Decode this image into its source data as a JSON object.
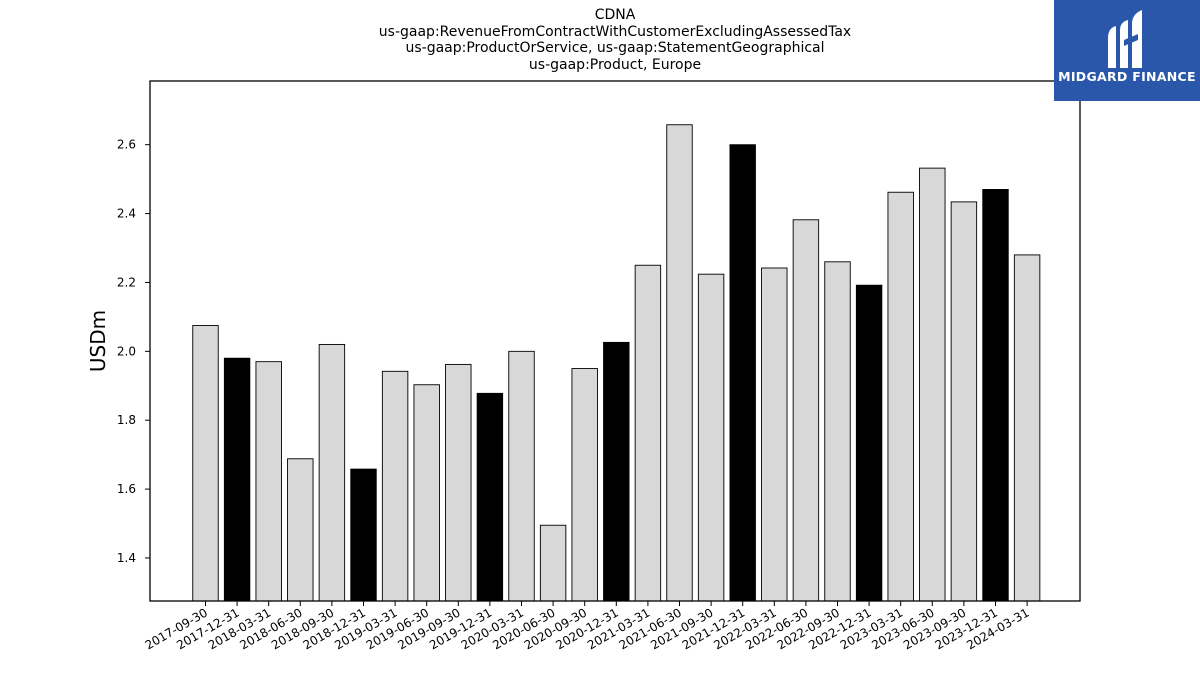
{
  "chart_data": {
    "type": "bar",
    "title_lines": [
      "CDNA",
      "us-gaap:RevenueFromContractWithCustomerExcludingAssessedTax",
      "us-gaap:ProductOrService, us-gaap:StatementGeographical",
      "us-gaap:Product, Europe"
    ],
    "ylabel": "USDm",
    "xlabel": "",
    "ylim": [
      1.275,
      2.785
    ],
    "yticks": [
      1.4,
      1.6,
      1.8,
      2.0,
      2.2,
      2.4,
      2.6
    ],
    "grid": false,
    "categories": [
      "2017-09-30",
      "2017-12-31",
      "2018-03-31",
      "2018-06-30",
      "2018-09-30",
      "2018-12-31",
      "2019-03-31",
      "2019-06-30",
      "2019-09-30",
      "2019-12-31",
      "2020-03-31",
      "2020-06-30",
      "2020-09-30",
      "2020-12-31",
      "2021-03-31",
      "2021-06-30",
      "2021-09-30",
      "2021-12-31",
      "2022-03-31",
      "2022-06-30",
      "2022-09-30",
      "2022-12-31",
      "2023-03-31",
      "2023-06-30",
      "2023-09-30",
      "2023-12-31",
      "2024-03-31"
    ],
    "values": [
      2.075,
      1.98,
      1.97,
      1.688,
      2.02,
      1.658,
      1.942,
      1.903,
      1.962,
      1.878,
      2.0,
      1.495,
      1.95,
      2.026,
      2.25,
      2.658,
      2.224,
      2.6,
      2.242,
      2.382,
      2.26,
      2.192,
      2.462,
      2.532,
      2.434,
      2.47,
      2.28
    ],
    "bar_colors": [
      "#d8d8d8",
      "#000000",
      "#d8d8d8",
      "#d8d8d8",
      "#d8d8d8",
      "#000000",
      "#d8d8d8",
      "#d8d8d8",
      "#d8d8d8",
      "#000000",
      "#d8d8d8",
      "#d8d8d8",
      "#d8d8d8",
      "#000000",
      "#d8d8d8",
      "#d8d8d8",
      "#d8d8d8",
      "#000000",
      "#d8d8d8",
      "#d8d8d8",
      "#d8d8d8",
      "#000000",
      "#d8d8d8",
      "#d8d8d8",
      "#d8d8d8",
      "#000000",
      "#d8d8d8"
    ]
  },
  "logo": {
    "text": "MIDGARD FINANCE",
    "background": "#2a57aa"
  }
}
